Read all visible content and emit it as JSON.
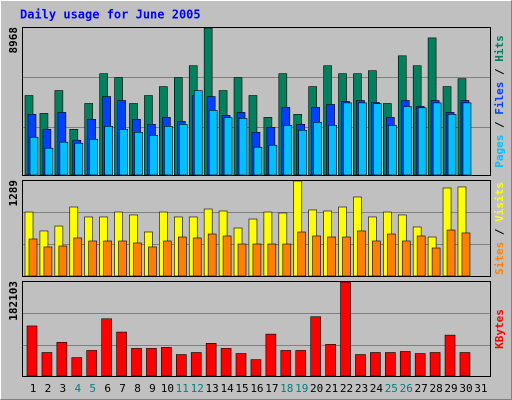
{
  "chart_data": [
    {
      "type": "bar",
      "title": "Daily usage for June 2005",
      "ylim": [
        0,
        8968
      ],
      "yticks": [
        8968
      ],
      "legend_separator": " / ",
      "series": [
        {
          "name": "Hits",
          "color": "#00805c",
          "values": [
            4848,
            3757,
            5151,
            2788,
            4363,
            6181,
            5939,
            4363,
            4848,
            5393,
            5939,
            6666,
            8968,
            5151,
            5939,
            4848,
            3515,
            6181,
            3697,
            5393,
            6666,
            6181,
            6181,
            6363,
            4363,
            7272,
            6666,
            8363,
            5393,
            5878,
            null
          ]
        },
        {
          "name": "Files",
          "color": "#0040ff",
          "values": [
            3697,
            2788,
            3818,
            2121,
            3394,
            4787,
            4545,
            3394,
            3091,
            3515,
            3272,
            4848,
            4787,
            3636,
            3818,
            2606,
            2909,
            4121,
            3091,
            4121,
            4303,
            4484,
            4545,
            4424,
            3515,
            4545,
            4181,
            4545,
            3818,
            4545,
            null
          ]
        },
        {
          "name": "Pages",
          "color": "#00c0ff",
          "values": [
            2303,
            1636,
            2000,
            1939,
            2181,
            2969,
            2787,
            2606,
            2424,
            2969,
            3090,
            5151,
            3939,
            3500,
            3454,
            1697,
            1818,
            3030,
            2727,
            3212,
            3030,
            4400,
            4400,
            4350,
            3030,
            4181,
            4100,
            4400,
            3700,
            4400,
            null
          ]
        }
      ]
    },
    {
      "type": "bar",
      "ylim": [
        0,
        1289
      ],
      "yticks": [
        1289
      ],
      "series": [
        {
          "name": "Visits",
          "color": "#ffff00",
          "values": [
            868,
            611,
            678,
            936,
            801,
            801,
            868,
            828,
            597,
            868,
            801,
            801,
            909,
            882,
            651,
            773,
            868,
            855,
            1289,
            896,
            882,
            936,
            1072,
            801,
            868,
            828,
            665,
            529,
            1194,
            1208,
            null
          ]
        },
        {
          "name": "Sites",
          "color": "#ff8000",
          "values": [
            502,
            394,
            407,
            516,
            475,
            475,
            475,
            448,
            394,
            475,
            529,
            516,
            570,
            543,
            434,
            434,
            434,
            434,
            597,
            543,
            529,
            529,
            611,
            475,
            570,
            475,
            543,
            380,
            624,
            584,
            null
          ]
        }
      ]
    },
    {
      "type": "bar",
      "ylim": [
        0,
        182103
      ],
      "yticks": [
        182103
      ],
      "categories": [
        "1",
        "2",
        "3",
        "4",
        "5",
        "6",
        "7",
        "8",
        "9",
        "10",
        "11",
        "12",
        "13",
        "14",
        "15",
        "16",
        "17",
        "18",
        "19",
        "20",
        "21",
        "22",
        "23",
        "24",
        "25",
        "26",
        "27",
        "28",
        "29",
        "30",
        "31"
      ],
      "highlight_indices": [
        3,
        4,
        10,
        11,
        17,
        18,
        24,
        25
      ],
      "highlight_color": "#008080",
      "series": [
        {
          "name": "KBytes",
          "color": "#ff0000",
          "values": [
            96971,
            45517,
            65307,
            35622,
            49475,
            110824,
            85097,
            53433,
            53433,
            55412,
            41559,
            45517,
            63328,
            53433,
            43538,
            31664,
            81139,
            49475,
            49475,
            114782,
            61349,
            182103,
            41559,
            45517,
            45517,
            47496,
            43538,
            45517,
            79160,
            45517,
            null
          ]
        }
      ]
    }
  ]
}
